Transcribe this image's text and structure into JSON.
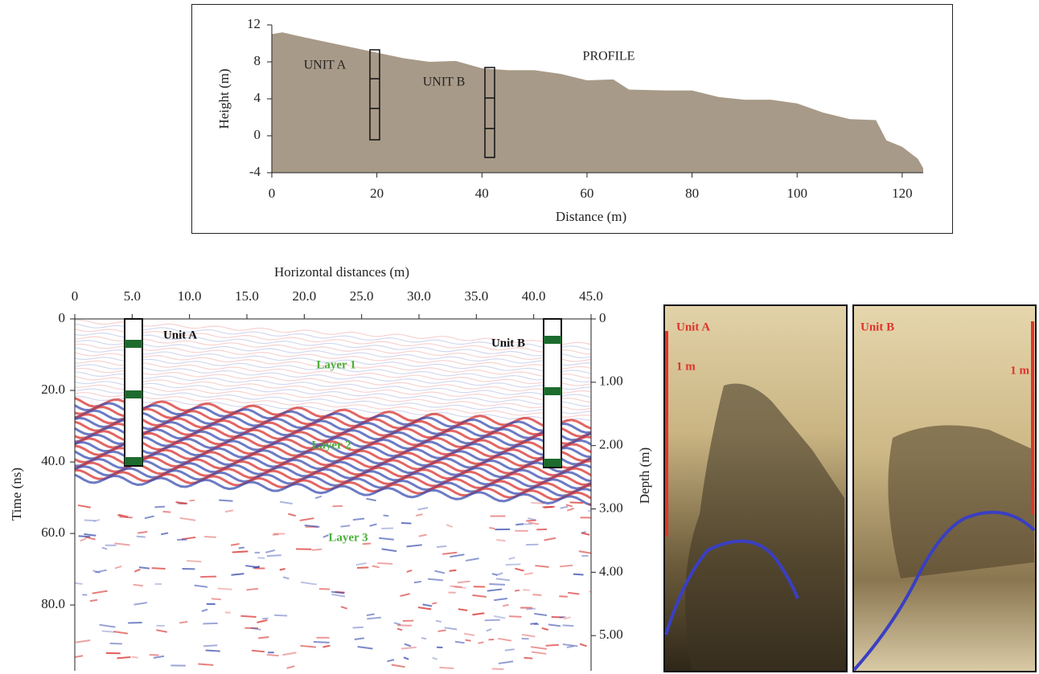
{
  "chart_data": [
    {
      "type": "area",
      "x_label": "Distance (m)",
      "y_label": "Height (m)",
      "x": [
        0,
        2,
        5,
        10,
        15,
        20,
        25,
        30,
        35,
        40,
        45,
        50,
        55,
        60,
        65,
        68,
        75,
        80,
        85,
        90,
        95,
        100,
        105,
        110,
        115,
        117,
        120,
        123,
        124
      ],
      "values": [
        11,
        11.2,
        10.8,
        10.2,
        9.6,
        9,
        8.4,
        8,
        8.1,
        7.3,
        7.1,
        7.1,
        6.7,
        6,
        6.1,
        5,
        4.9,
        4.9,
        4.2,
        3.9,
        3.9,
        3.5,
        2.5,
        1.8,
        1.7,
        -0.5,
        -1.2,
        -2.5,
        -3.5
      ],
      "color": "#a89a88",
      "xlim": [
        0,
        124
      ],
      "xticks": [
        0,
        20,
        40,
        60,
        80,
        100,
        120
      ],
      "ylim": [
        -4,
        12
      ],
      "yticks": [
        -4,
        0,
        4,
        8,
        12
      ],
      "annotations": [
        "UNIT A",
        "UNIT B",
        "PROFILE"
      ]
    },
    {
      "type": "image",
      "x_label": "Horizontal distances (m)",
      "y_label": "Time (ns)",
      "y2_label": "Depth (m)",
      "xlim": [
        0,
        45
      ],
      "xticks": [
        0,
        {
          "value": 5,
          "label": "5.0"
        },
        {
          "value": 10,
          "label": "10.0"
        },
        {
          "value": 15,
          "label": "15.0"
        },
        {
          "value": 20,
          "label": "20.0"
        },
        {
          "value": 25,
          "label": "25.0"
        },
        {
          "value": 30,
          "label": "30.0"
        },
        {
          "value": 35,
          "label": "35.0"
        },
        {
          "value": 40,
          "label": "40.0"
        },
        {
          "value": 45,
          "label": "45.0"
        }
      ],
      "ylim": [
        0,
        98.4
      ],
      "yticks": [
        0,
        {
          "value": 20,
          "label": "20.0"
        },
        {
          "value": 40,
          "label": "40.0"
        },
        {
          "value": 60,
          "label": "60.0"
        },
        {
          "value": 80,
          "label": "80.0"
        }
      ],
      "y2lim": [
        0,
        5.5
      ],
      "y2ticks": [
        0,
        {
          "value": 1,
          "label": "1.00"
        },
        {
          "value": 2,
          "label": "2.00"
        },
        {
          "value": 3,
          "label": "3.00"
        },
        {
          "value": 4,
          "label": "4.00"
        },
        {
          "value": 5,
          "label": "5.00"
        }
      ],
      "annotations": [
        "Unit A",
        "Unit B",
        "Layer 1",
        "Layer 2",
        "Layer 3"
      ]
    }
  ],
  "photos": [
    {
      "label": "Unit A",
      "scale": "1 m"
    },
    {
      "label": "Unit B",
      "scale": "1 m"
    }
  ]
}
